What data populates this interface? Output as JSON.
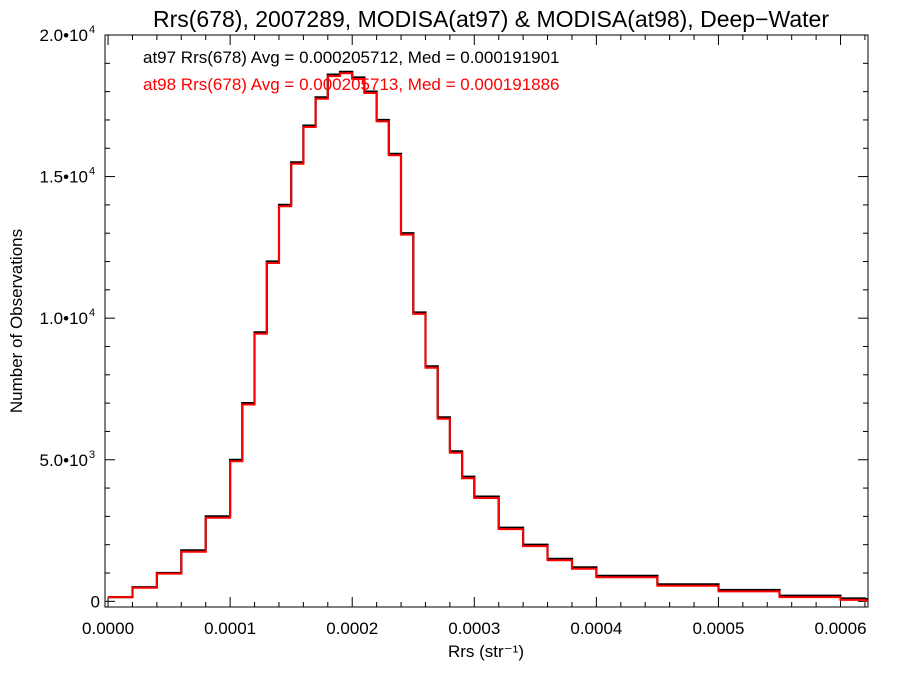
{
  "chart_data": {
    "type": "line",
    "title": "Rrs(678), 2007289, MODISA(at97) & MODISA(at98), Deep−Water",
    "xlabel": "Rrs (str⁻¹)",
    "ylabel": "Number of Observations",
    "xlim": [
      -2.5e-06,
      0.0006225
    ],
    "ylim": [
      -200,
      20000
    ],
    "x_ticks": [
      {
        "value": 0.0,
        "label": "0.0000"
      },
      {
        "value": 0.0001,
        "label": "0.0001"
      },
      {
        "value": 0.0002,
        "label": "0.0002"
      },
      {
        "value": 0.0003,
        "label": "0.0003"
      },
      {
        "value": 0.0004,
        "label": "0.0004"
      },
      {
        "value": 0.0005,
        "label": "0.0005"
      },
      {
        "value": 0.0006,
        "label": "0.0006"
      }
    ],
    "y_ticks": [
      {
        "value": 0,
        "mantissa": "0",
        "exp": ""
      },
      {
        "value": 5000,
        "mantissa": "5.0•10",
        "exp": "3"
      },
      {
        "value": 10000,
        "mantissa": "1.0•10",
        "exp": "4"
      },
      {
        "value": 15000,
        "mantissa": "1.5•10",
        "exp": "4"
      },
      {
        "value": 20000,
        "mantissa": "2.0•10",
        "exp": "4"
      }
    ],
    "grid": false,
    "legend_placement": "top-left",
    "annotations": [
      {
        "text": "at97 Rrs(678) Avg = 0.000205712, Med = 0.000191901",
        "color": "#000000"
      },
      {
        "text": "at98 Rrs(678) Avg = 0.000205713, Med = 0.000191886",
        "color": "#ff0000"
      }
    ],
    "series": [
      {
        "color": "#000000",
        "x": [
          0.0,
          2e-05,
          4e-05,
          6e-05,
          8e-05,
          0.0001,
          0.00011,
          0.00012,
          0.00013,
          0.00014,
          0.00015,
          0.00016,
          0.00017,
          0.00018,
          0.00019,
          0.0002,
          0.00021,
          0.00022,
          0.00023,
          0.00024,
          0.00025,
          0.00026,
          0.00027,
          0.00028,
          0.00029,
          0.0003,
          0.00032,
          0.00034,
          0.00036,
          0.00038,
          0.0004,
          0.00045,
          0.0005,
          0.00055,
          0.0006,
          0.00062
        ],
        "y": [
          150,
          500,
          1000,
          1800,
          3000,
          5000,
          7000,
          9500,
          12000,
          14000,
          15500,
          16800,
          17800,
          18600,
          18700,
          18500,
          18000,
          17000,
          15800,
          13000,
          10200,
          8300,
          6500,
          5300,
          4400,
          3700,
          2600,
          2000,
          1500,
          1200,
          900,
          600,
          400,
          200,
          100,
          80
        ]
      },
      {
        "color": "#ff0000",
        "x": [
          0.0,
          2e-05,
          4e-05,
          6e-05,
          8e-05,
          0.0001,
          0.00011,
          0.00012,
          0.00013,
          0.00014,
          0.00015,
          0.00016,
          0.00017,
          0.00018,
          0.00019,
          0.0002,
          0.00021,
          0.00022,
          0.00023,
          0.00024,
          0.00025,
          0.00026,
          0.00027,
          0.00028,
          0.00029,
          0.0003,
          0.00032,
          0.00034,
          0.00036,
          0.00038,
          0.0004,
          0.00045,
          0.0005,
          0.00055,
          0.0006,
          0.00062
        ],
        "y": [
          150,
          480,
          980,
          1750,
          2950,
          4950,
          6950,
          9450,
          11950,
          13950,
          15450,
          16750,
          17750,
          18550,
          18650,
          18450,
          17950,
          16950,
          15750,
          12950,
          10150,
          8250,
          6450,
          5250,
          4350,
          3650,
          2550,
          1950,
          1450,
          1150,
          850,
          550,
          350,
          150,
          50,
          30
        ]
      }
    ]
  }
}
